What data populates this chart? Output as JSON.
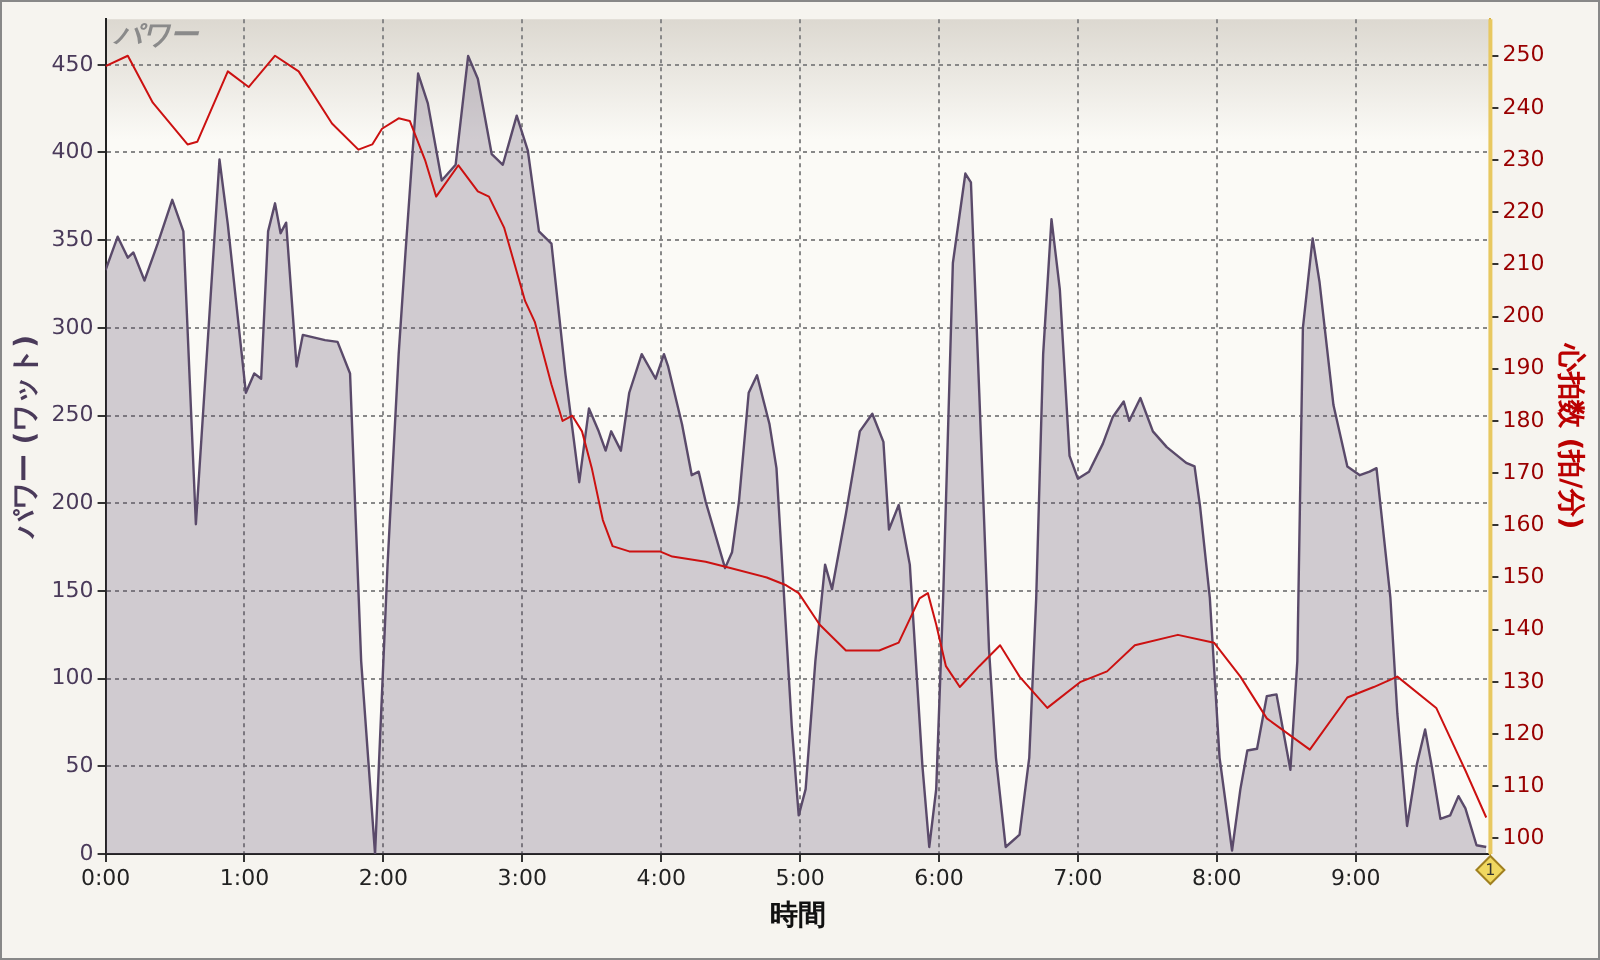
{
  "chart_data": {
    "type": "area",
    "title": "パワー",
    "xlabel": "時間",
    "ylabel": "パワー (ワット)",
    "y2label": "心拍数 (拍/分)",
    "xlim": [
      0,
      9.97
    ],
    "xticks": [
      {
        "value": 0,
        "label": "0:00"
      },
      {
        "value": 1,
        "label": "1:00"
      },
      {
        "value": 2,
        "label": "2:00"
      },
      {
        "value": 3,
        "label": "3:00"
      },
      {
        "value": 4,
        "label": "4:00"
      },
      {
        "value": 5,
        "label": "5:00"
      },
      {
        "value": 6,
        "label": "6:00"
      },
      {
        "value": 7,
        "label": "7:00"
      },
      {
        "value": 8,
        "label": "8:00"
      },
      {
        "value": 9,
        "label": "9:00"
      }
    ],
    "ylim": [
      0,
      476
    ],
    "yticks": [
      0,
      50,
      100,
      150,
      200,
      250,
      300,
      350,
      400,
      450
    ],
    "y2lim": [
      97,
      257
    ],
    "y2ticks": [
      100,
      110,
      120,
      130,
      140,
      150,
      160,
      170,
      180,
      190,
      200,
      210,
      220,
      230,
      240,
      250
    ],
    "grid": true,
    "marker": "none",
    "ref_lines": [
      {
        "axis": "x",
        "value": 9.97,
        "color": "#e8c860"
      }
    ],
    "annotations": [
      {
        "text": "1",
        "x": 9.97,
        "y": 0
      }
    ],
    "series": [
      {
        "color": "#5a4a6a",
        "x": [
          0,
          0.087,
          0.16,
          0.2,
          0.28,
          0.375,
          0.48,
          0.56,
          0.65,
          0.82,
          0.88,
          1.01,
          1.07,
          1.12,
          1.17,
          1.22,
          1.26,
          1.3,
          1.375,
          1.42,
          1.58,
          1.67,
          1.76,
          1.84,
          1.94,
          2.03,
          2.11,
          2.16,
          2.25,
          2.32,
          2.42,
          2.52,
          2.61,
          2.68,
          2.78,
          2.86,
          2.96,
          3.04,
          3.12,
          3.21,
          3.31,
          3.41,
          3.48,
          3.55,
          3.6,
          3.64,
          3.71,
          3.77,
          3.86,
          3.96,
          4.02,
          4.05,
          4.15,
          4.22,
          4.27,
          4.32,
          4.46,
          4.51,
          4.56,
          4.63,
          4.69,
          4.78,
          4.83,
          4.94,
          4.99,
          5.04,
          5.11,
          5.18,
          5.23,
          5.33,
          5.43,
          5.52,
          5.6,
          5.64,
          5.71,
          5.79,
          5.88,
          5.93,
          5.98,
          6.03,
          6.1,
          6.19,
          6.23,
          6.29,
          6.36,
          6.41,
          6.48,
          6.58,
          6.65,
          6.7,
          6.75,
          6.81,
          6.87,
          6.94,
          7.0,
          7.08,
          7.18,
          7.25,
          7.33,
          7.37,
          7.45,
          7.54,
          7.64,
          7.78,
          7.84,
          7.88,
          7.95,
          8.02,
          8.11,
          8.17,
          8.22,
          8.29,
          8.36,
          8.43,
          8.53,
          8.58,
          8.62,
          8.69,
          8.74,
          8.84,
          8.94,
          9.03,
          9.1,
          9.15,
          9.25,
          9.3,
          9.37,
          9.44,
          9.5,
          9.55,
          9.61,
          9.68,
          9.74,
          9.79,
          9.87,
          9.94
        ],
        "values": [
          333,
          352,
          340,
          343,
          327,
          348,
          373,
          355,
          188,
          396,
          359,
          263,
          274,
          271,
          355,
          371,
          354,
          360,
          278,
          296,
          293,
          292,
          274,
          110,
          0,
          165,
          285,
          344,
          445,
          428,
          384,
          393,
          455,
          442,
          399,
          393,
          421,
          401,
          355,
          348,
          274,
          212,
          254,
          241,
          230,
          241,
          230,
          263,
          285,
          271,
          285,
          278,
          245,
          216,
          218,
          201,
          163,
          172,
          201,
          263,
          273,
          245,
          220,
          73,
          22,
          37,
          110,
          165,
          151,
          194,
          241,
          251,
          235,
          185,
          199,
          165,
          51,
          4,
          37,
          146,
          337,
          388,
          383,
          263,
          117,
          55,
          4,
          11,
          55,
          146,
          285,
          362,
          322,
          227,
          214,
          218,
          234,
          249,
          258,
          247,
          260,
          241,
          232,
          223,
          221,
          198,
          146,
          55,
          2,
          37,
          59,
          60,
          90,
          91,
          48,
          110,
          300,
          351,
          326,
          256,
          221,
          216,
          218,
          220,
          146,
          80,
          16,
          51,
          71,
          49,
          20,
          22,
          33,
          26,
          5,
          4
        ]
      },
      {
        "type": "line",
        "axis": "y2",
        "color": "#cc1111",
        "x": [
          0,
          0.16,
          0.34,
          0.59,
          0.66,
          0.88,
          1.03,
          1.22,
          1.39,
          1.63,
          1.82,
          1.92,
          1.99,
          2.11,
          2.19,
          2.3,
          2.38,
          2.54,
          2.68,
          2.76,
          2.87,
          3.02,
          3.09,
          3.21,
          3.29,
          3.36,
          3.43,
          3.5,
          3.58,
          3.65,
          3.77,
          3.99,
          4.08,
          4.32,
          4.47,
          4.76,
          4.9,
          4.99,
          5.14,
          5.33,
          5.57,
          5.71,
          5.86,
          5.92,
          5.98,
          6.05,
          6.15,
          6.29,
          6.44,
          6.58,
          6.78,
          7.02,
          7.21,
          7.41,
          7.72,
          7.98,
          8.17,
          8.36,
          8.67,
          8.94,
          9.13,
          9.3,
          9.58,
          9.79,
          9.94
        ],
        "values": [
          248,
          250,
          241,
          233,
          233.5,
          247,
          244,
          250,
          247,
          237,
          232,
          233,
          236,
          238,
          237.5,
          230,
          223,
          229,
          224,
          223,
          217,
          203,
          199,
          187,
          180,
          181,
          178,
          171,
          161,
          156,
          155,
          155,
          154,
          153,
          152,
          150,
          148.5,
          147,
          141,
          136,
          136,
          137.5,
          146,
          147,
          141,
          133,
          129,
          133,
          137,
          131,
          125,
          130,
          132,
          137,
          139,
          137.5,
          131,
          123,
          117,
          127,
          129,
          131,
          125,
          113,
          104
        ]
      }
    ]
  }
}
